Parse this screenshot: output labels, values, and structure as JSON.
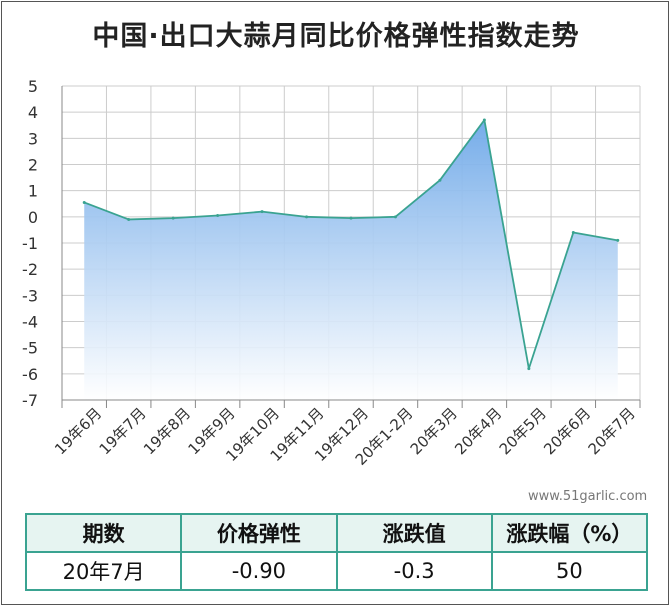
{
  "title": "中国·出口大蒜月同比价格弹性指数走势",
  "watermark": "www.51garlic.com",
  "colors": {
    "line": "#3aa391",
    "fill_top": "#6ea8e8",
    "fill_bottom": "#ffffff",
    "grid": "#cccccc",
    "table_border": "#3aa391"
  },
  "chart_data": {
    "type": "area",
    "title": "中国·出口大蒜月同比价格弹性指数走势",
    "categories": [
      "19年6月",
      "19年7月",
      "19年8月",
      "19年9月",
      "19年10月",
      "19年11月",
      "19年12月",
      "20年1-2月",
      "20年3月",
      "20年4月",
      "20年5月",
      "20年6月",
      "20年7月"
    ],
    "values": [
      0.55,
      -0.1,
      -0.05,
      0.05,
      0.2,
      0.0,
      -0.05,
      0.0,
      1.4,
      3.7,
      -5.8,
      -0.6,
      -0.9
    ],
    "y_ticks": [
      "5",
      "4",
      "3",
      "2",
      "1",
      "0",
      "-1",
      "-2",
      "-3",
      "-4",
      "-5",
      "-6",
      "-7"
    ],
    "ylim": [
      -7,
      5
    ],
    "grid": true,
    "legend": "none"
  },
  "table": {
    "headers": [
      "期数",
      "价格弹性",
      "涨跌值",
      "涨跌幅（%）"
    ],
    "row": [
      "20年7月",
      "-0.90",
      "-0.3",
      "50"
    ]
  }
}
